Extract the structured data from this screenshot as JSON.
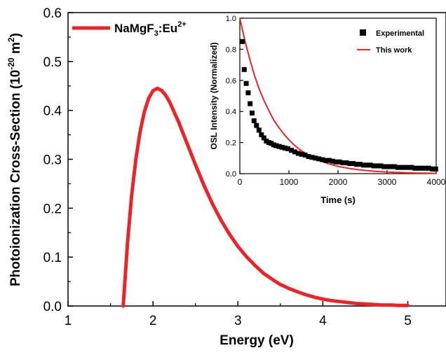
{
  "chart_data": [
    {
      "type": "line",
      "title": "",
      "xlabel": "Energy (eV)",
      "ylabel": "Photoionization Cross-Section (10",
      "ylabel_sup": "-20",
      "ylabel_mid": " m",
      "ylabel_sup2": "2",
      "ylabel_end": ")",
      "xlim": [
        1,
        5.45
      ],
      "ylim": [
        0,
        0.6
      ],
      "xticks": [
        "1",
        "2",
        "3",
        "4",
        "5"
      ],
      "yticks": [
        "0.0",
        "0.1",
        "0.2",
        "0.3",
        "0.4",
        "0.5",
        "0.6"
      ],
      "grid": false,
      "legend_position": "top-left",
      "series": [
        {
          "name": "NaMgF",
          "name_sub": "3",
          "name_mid": ":Eu",
          "name_sup": "2+",
          "color": "#e8262a",
          "x": [
            1.65,
            1.7,
            1.75,
            1.8,
            1.85,
            1.9,
            1.95,
            2.0,
            2.05,
            2.1,
            2.15,
            2.2,
            2.3,
            2.4,
            2.5,
            2.6,
            2.7,
            2.8,
            2.9,
            3.0,
            3.1,
            3.2,
            3.3,
            3.4,
            3.5,
            3.6,
            3.7,
            3.8,
            3.9,
            4.0,
            4.1,
            4.2,
            4.3,
            4.4,
            4.5,
            4.6,
            4.7,
            4.8,
            4.9,
            5.0
          ],
          "y": [
            0.0,
            0.128,
            0.227,
            0.302,
            0.358,
            0.398,
            0.425,
            0.44,
            0.445,
            0.441,
            0.431,
            0.416,
            0.377,
            0.333,
            0.289,
            0.247,
            0.209,
            0.176,
            0.147,
            0.122,
            0.101,
            0.083,
            0.067,
            0.055,
            0.044,
            0.036,
            0.029,
            0.023,
            0.018,
            0.014,
            0.011,
            0.009,
            0.007,
            0.005,
            0.004,
            0.003,
            0.002,
            0.002,
            0.001,
            0.001
          ]
        }
      ]
    },
    {
      "type": "scatter",
      "title": "",
      "xlabel": "Time (s)",
      "ylabel": "OSL Intensity (Normalized)",
      "xlim": [
        0,
        4000
      ],
      "ylim": [
        0,
        1.0
      ],
      "xticks": [
        "0",
        "1000",
        "2000",
        "3000",
        "4000"
      ],
      "yticks": [
        "0.0",
        "0.2",
        "0.4",
        "0.6",
        "0.8",
        "1.0"
      ],
      "grid": false,
      "legend_position": "top-right",
      "series": [
        {
          "name": "Experimental",
          "color": "#000000",
          "marker": "square",
          "x": [
            50,
            90,
            130,
            170,
            210,
            250,
            290,
            340,
            390,
            440,
            490,
            540,
            590,
            640,
            690,
            740,
            800,
            860,
            920,
            980,
            1050,
            1120,
            1190,
            1260,
            1330,
            1400,
            1470,
            1540,
            1610,
            1680,
            1750,
            1820,
            1890,
            1960,
            2030,
            2100,
            2170,
            2240,
            2310,
            2380,
            2450,
            2520,
            2590,
            2660,
            2730,
            2800,
            2870,
            2940,
            3010,
            3080,
            3150,
            3220,
            3290,
            3360,
            3430,
            3500,
            3570,
            3640,
            3710,
            3780,
            3850,
            3920,
            3990
          ],
          "y": [
            0.85,
            0.67,
            0.58,
            0.52,
            0.45,
            0.39,
            0.34,
            0.31,
            0.28,
            0.25,
            0.23,
            0.21,
            0.2,
            0.195,
            0.185,
            0.18,
            0.175,
            0.17,
            0.165,
            0.16,
            0.15,
            0.14,
            0.13,
            0.125,
            0.12,
            0.11,
            0.105,
            0.1,
            0.095,
            0.09,
            0.085,
            0.085,
            0.08,
            0.075,
            0.075,
            0.07,
            0.07,
            0.065,
            0.065,
            0.06,
            0.06,
            0.055,
            0.055,
            0.055,
            0.05,
            0.05,
            0.05,
            0.045,
            0.045,
            0.045,
            0.045,
            0.04,
            0.04,
            0.04,
            0.04,
            0.04,
            0.035,
            0.035,
            0.035,
            0.035,
            0.035,
            0.03,
            0.03
          ]
        },
        {
          "name": "This work",
          "color": "#e8262a",
          "x": [
            0,
            100,
            200,
            300,
            400,
            500,
            600,
            700,
            800,
            900,
            1000,
            1100,
            1200,
            1300,
            1400,
            1500,
            1600,
            1800,
            2000,
            2200,
            2400,
            2600,
            2800,
            3000,
            3200,
            3400,
            3600,
            3800,
            4000
          ],
          "y": [
            1.0,
            0.86,
            0.74,
            0.63,
            0.54,
            0.465,
            0.4,
            0.34,
            0.295,
            0.253,
            0.218,
            0.187,
            0.16,
            0.138,
            0.118,
            0.102,
            0.087,
            0.064,
            0.047,
            0.035,
            0.026,
            0.019,
            0.014,
            0.01,
            0.008,
            0.006,
            0.004,
            0.003,
            0.002
          ]
        }
      ]
    }
  ]
}
